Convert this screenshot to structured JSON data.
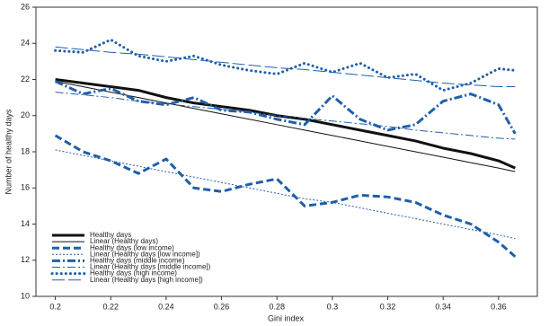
{
  "chart_data": {
    "type": "line",
    "x_label": "Gini index",
    "y_label": "Number of healthy days",
    "x": [
      0.2,
      0.21,
      0.22,
      0.23,
      0.24,
      0.25,
      0.26,
      0.27,
      0.28,
      0.29,
      0.3,
      0.31,
      0.32,
      0.33,
      0.34,
      0.35,
      0.36,
      0.366
    ],
    "xlim": [
      0.193,
      0.374
    ],
    "ylim": [
      10,
      26
    ],
    "xticks": [
      0.2,
      0.22,
      0.24,
      0.26,
      0.28,
      0.3,
      0.32,
      0.34,
      0.36
    ],
    "yticks": [
      10,
      12,
      14,
      16,
      18,
      20,
      22,
      24,
      26
    ],
    "legend": "lower-left",
    "series": [
      {
        "name": "Healthy days",
        "color": "#111111",
        "linestyle": "solid",
        "linewidth": 3,
        "values": [
          22.0,
          21.8,
          21.6,
          21.4,
          21.0,
          20.7,
          20.5,
          20.3,
          20.0,
          19.8,
          19.5,
          19.2,
          18.9,
          18.6,
          18.2,
          17.9,
          17.5,
          17.1
        ]
      },
      {
        "name": "Linear (Healthy days)",
        "color": "#111111",
        "linestyle": "solid",
        "linewidth": 1,
        "values": [
          21.9,
          21.6,
          21.3,
          21.0,
          20.7,
          20.4,
          20.1,
          19.8,
          19.5,
          19.2,
          18.9,
          18.6,
          18.3,
          18.0,
          17.7,
          17.4,
          17.1,
          16.9
        ]
      },
      {
        "name": "Healthy days (low income)",
        "color": "#1f5fa8",
        "linestyle": "dashed",
        "linewidth": 3,
        "values": [
          18.9,
          18.0,
          17.5,
          16.8,
          17.6,
          16.0,
          15.8,
          16.2,
          16.5,
          15.0,
          15.2,
          15.6,
          15.5,
          15.2,
          14.5,
          14.0,
          13.0,
          12.2
        ]
      },
      {
        "name": "Linear (Healthy days [low income])",
        "color": "#1f5fa8",
        "linestyle": "dotted",
        "linewidth": 1,
        "values": [
          18.1,
          17.8,
          17.5,
          17.2,
          16.9,
          16.6,
          16.3,
          16.0,
          15.7,
          15.4,
          15.2,
          14.9,
          14.6,
          14.3,
          14.0,
          13.7,
          13.4,
          13.2
        ]
      },
      {
        "name": "Healthy days (middle income)",
        "color": "#1f5fa8",
        "linestyle": "dashdot",
        "linewidth": 3,
        "values": [
          21.9,
          21.2,
          21.5,
          20.8,
          20.6,
          21.0,
          20.3,
          20.2,
          19.8,
          19.5,
          21.1,
          19.8,
          19.2,
          19.5,
          20.8,
          21.2,
          20.6,
          19.0
        ]
      },
      {
        "name": "Linear (Healthy days [middle income])",
        "color": "#1f5fa8",
        "linestyle": "dashdot",
        "linewidth": 1,
        "values": [
          21.3,
          21.15,
          21.0,
          20.8,
          20.65,
          20.5,
          20.35,
          20.2,
          20.0,
          19.85,
          19.7,
          19.55,
          19.4,
          19.2,
          19.05,
          18.9,
          18.75,
          18.7
        ]
      },
      {
        "name": "Healthy days (high income)",
        "color": "#1f5fa8",
        "linestyle": "dots",
        "linewidth": 3,
        "values": [
          23.6,
          23.5,
          24.2,
          23.3,
          23.0,
          23.3,
          22.8,
          22.5,
          22.3,
          22.9,
          22.4,
          22.9,
          22.1,
          22.3,
          21.4,
          21.8,
          22.6,
          22.5
        ]
      },
      {
        "name": "Linear (Healthy days [high income])",
        "color": "#1f5fa8",
        "linestyle": "longdash",
        "linewidth": 1,
        "values": [
          23.8,
          23.65,
          23.5,
          23.4,
          23.25,
          23.1,
          22.95,
          22.8,
          22.65,
          22.55,
          22.4,
          22.25,
          22.1,
          21.95,
          21.8,
          21.7,
          21.6,
          21.6
        ]
      }
    ]
  }
}
